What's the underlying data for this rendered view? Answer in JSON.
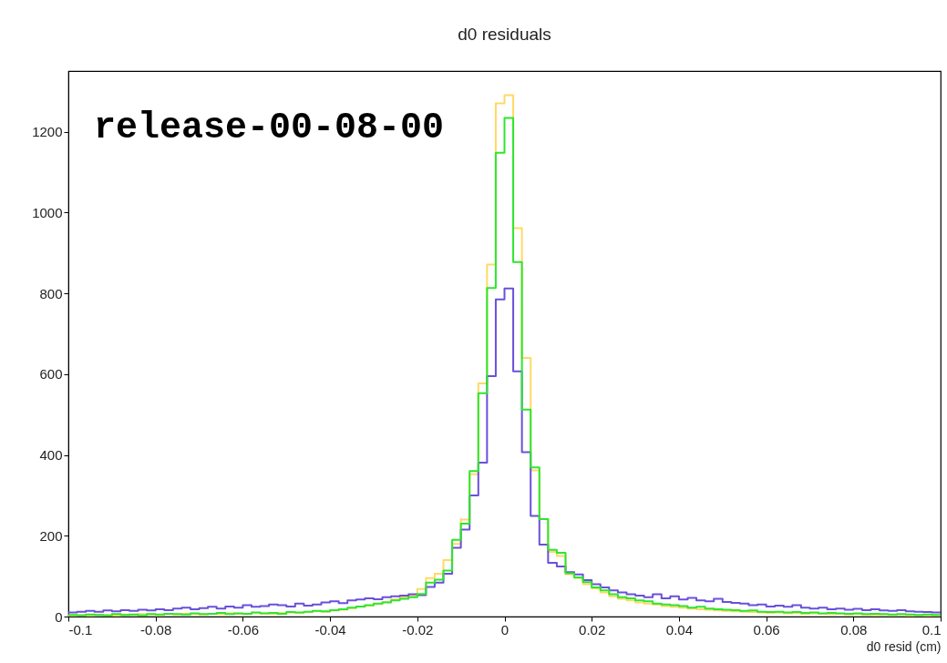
{
  "chart_data": {
    "type": "histogram",
    "title": "d0 residuals",
    "xlabel": "d0 resid (cm)",
    "annotations": [
      "release-00-08-00"
    ],
    "bins": [
      -0.1,
      -0.098,
      -0.096,
      -0.094,
      -0.092,
      -0.09,
      -0.088,
      -0.086,
      -0.084,
      -0.082,
      -0.08,
      -0.078,
      -0.076,
      -0.074,
      -0.072,
      -0.07,
      -0.068,
      -0.066,
      -0.064,
      -0.062,
      -0.06,
      -0.058,
      -0.056,
      -0.054,
      -0.052,
      -0.05,
      -0.048,
      -0.046,
      -0.044,
      -0.042,
      -0.04,
      -0.038,
      -0.036,
      -0.034,
      -0.032,
      -0.03,
      -0.028,
      -0.026,
      -0.024,
      -0.022,
      -0.02,
      -0.018,
      -0.016,
      -0.014,
      -0.012,
      -0.01,
      -0.008,
      -0.006,
      -0.004,
      -0.002,
      0,
      0.002,
      0.004,
      0.006,
      0.008,
      0.01,
      0.012,
      0.014,
      0.016,
      0.018,
      0.02,
      0.022,
      0.024,
      0.026,
      0.028,
      0.03,
      0.032,
      0.034,
      0.036,
      0.038,
      0.04,
      0.042,
      0.044,
      0.046,
      0.048,
      0.05,
      0.052,
      0.054,
      0.056,
      0.058,
      0.06,
      0.062,
      0.064,
      0.066,
      0.068,
      0.07,
      0.072,
      0.074,
      0.076,
      0.078,
      0.08,
      0.082,
      0.084,
      0.086,
      0.088,
      0.09,
      0.092,
      0.094,
      0.096,
      0.098,
      0.1
    ],
    "series": [
      {
        "color": "#ffd966",
        "values": [
          3,
          4,
          3,
          5,
          4,
          3,
          5,
          4,
          6,
          5,
          4,
          6,
          5,
          7,
          6,
          5,
          7,
          6,
          8,
          7,
          6,
          9,
          8,
          7,
          9,
          10,
          9,
          11,
          13,
          12,
          15,
          17,
          21,
          24,
          27,
          31,
          36,
          42,
          48,
          52,
          68,
          95,
          106,
          140,
          180,
          240,
          352,
          577,
          871,
          1270,
          1290,
          961,
          640,
          362,
          241,
          160,
          150,
          105,
          95,
          80,
          70,
          60,
          50,
          44,
          40,
          35,
          32,
          30,
          26,
          24,
          22,
          20,
          18,
          17,
          15,
          14,
          13,
          12,
          11,
          10,
          9,
          10,
          8,
          9,
          7,
          8,
          7,
          6,
          7,
          5,
          6,
          5,
          4,
          5,
          4,
          5,
          3,
          4,
          3,
          3
        ]
      },
      {
        "color": "#6a50dc",
        "values": [
          10,
          12,
          14,
          12,
          15,
          13,
          16,
          14,
          17,
          15,
          18,
          16,
          20,
          22,
          18,
          21,
          24,
          20,
          25,
          22,
          28,
          24,
          26,
          30,
          28,
          25,
          32,
          27,
          30,
          35,
          38,
          33,
          40,
          42,
          45,
          43,
          48,
          50,
          52,
          55,
          53,
          73,
          84,
          106,
          170,
          215,
          300,
          381,
          595,
          785,
          812,
          607,
          407,
          249,
          178,
          133,
          124,
          110,
          104,
          90,
          80,
          72,
          65,
          60,
          55,
          52,
          48,
          55,
          45,
          50,
          42,
          46,
          40,
          38,
          44,
          36,
          34,
          32,
          28,
          30,
          25,
          27,
          24,
          28,
          22,
          20,
          22,
          18,
          20,
          17,
          19,
          16,
          18,
          15,
          14,
          16,
          13,
          12,
          11,
          10
        ]
      },
      {
        "color": "#2ee62e",
        "values": [
          4,
          3,
          5,
          4,
          3,
          6,
          4,
          5,
          3,
          6,
          5,
          7,
          6,
          5,
          8,
          6,
          7,
          9,
          6,
          8,
          7,
          10,
          8,
          9,
          7,
          11,
          10,
          12,
          14,
          13,
          16,
          18,
          22,
          25,
          28,
          32,
          35,
          40,
          44,
          48,
          56,
          84,
          91,
          114,
          190,
          230,
          360,
          553,
          813,
          1148,
          1234,
          877,
          512,
          369,
          241,
          165,
          158,
          107,
          97,
          85,
          72,
          65,
          55,
          48,
          45,
          40,
          38,
          32,
          30,
          28,
          26,
          22,
          24,
          20,
          18,
          17,
          16,
          14,
          15,
          12,
          11,
          12,
          10,
          11,
          9,
          10,
          8,
          9,
          8,
          7,
          8,
          6,
          7,
          6,
          5,
          6,
          5,
          4,
          5,
          4
        ]
      }
    ],
    "xlim": [
      -0.1,
      0.1
    ],
    "xticks": [
      -0.1,
      -0.08,
      -0.06,
      -0.04,
      -0.02,
      0,
      0.02,
      0.04,
      0.06,
      0.08,
      0.1
    ],
    "ylim": [
      0,
      1350
    ],
    "yticks": [
      0,
      200,
      400,
      600,
      800,
      1000,
      1200
    ]
  }
}
